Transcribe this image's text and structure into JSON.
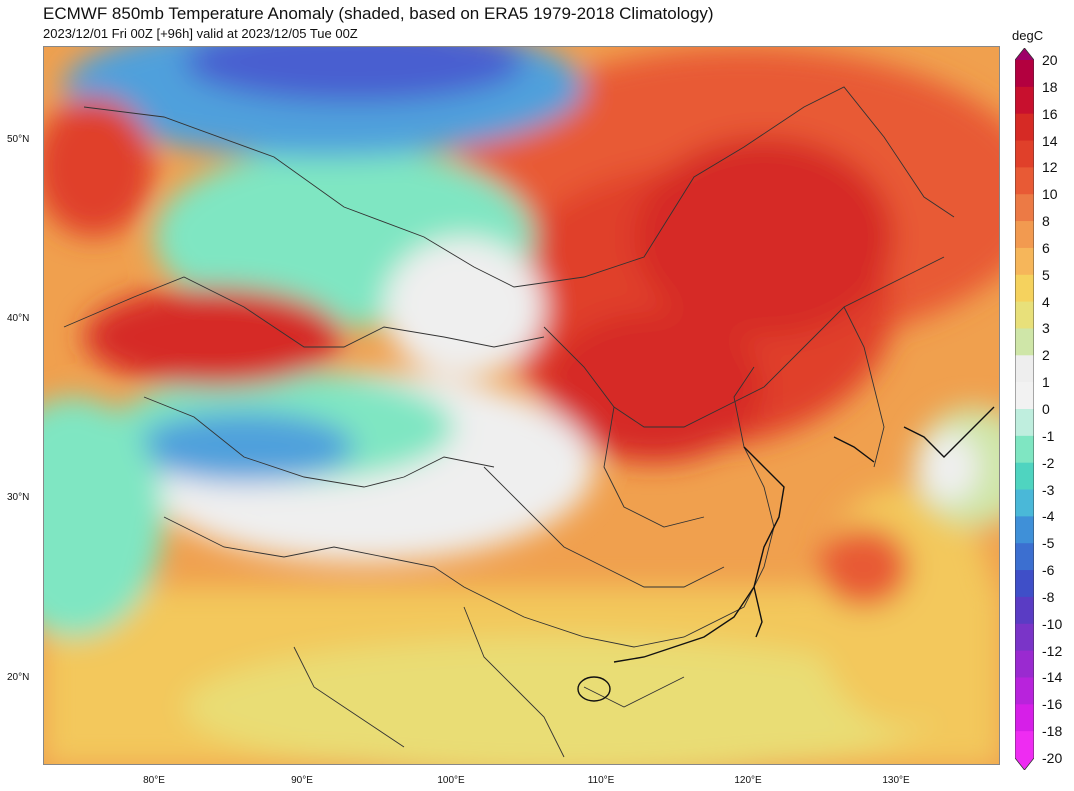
{
  "header": {
    "title": "ECMWF 850mb Temperature Anomaly (shaded, based on ERA5 1979-2018 Climatology)",
    "subtitle": "2023/12/01 Fri 00Z [+96h] valid at 2023/12/05 Tue 00Z"
  },
  "axes": {
    "lat_labels": [
      "50°N",
      "40°N",
      "30°N",
      "20°N"
    ],
    "lon_labels": [
      "80°E",
      "90°E",
      "100°E",
      "110°E",
      "120°E",
      "130°E"
    ]
  },
  "colorbar": {
    "unit": "degC",
    "levels": [
      "20",
      "18",
      "16",
      "14",
      "12",
      "10",
      "8",
      "6",
      "5",
      "4",
      "3",
      "2",
      "1",
      "0",
      "-1",
      "-2",
      "-3",
      "-4",
      "-5",
      "-6",
      "-8",
      "-10",
      "-12",
      "-14",
      "-16",
      "-18",
      "-20"
    ],
    "colors": [
      "#9e0068",
      "#b3003f",
      "#c8102e",
      "#d62a25",
      "#e0402a",
      "#e85a35",
      "#ec7a45",
      "#f29a50",
      "#f6b65a",
      "#f5d25e",
      "#e8e07a",
      "#cfe6a8",
      "#eeeeee",
      "#f2f2f2",
      "#bfeede",
      "#7fe6c2",
      "#4fd4c0",
      "#4ab8d8",
      "#3f90d8",
      "#3c6fd0",
      "#3f4fc8",
      "#5a3cc4",
      "#7a34c8",
      "#9a2ad0",
      "#b823dc",
      "#d61fe8",
      "#ee2cf2"
    ]
  },
  "map": {
    "field": "850mb temperature anomaly",
    "colors": {
      "hot": "#d9262a",
      "warm": "#ee6f45",
      "mild": "#f6b65a",
      "neutral": "#efefef",
      "cool": "#7fe6c2",
      "cold": "#4fa0dc",
      "very_cold": "#4a5fd0"
    }
  }
}
